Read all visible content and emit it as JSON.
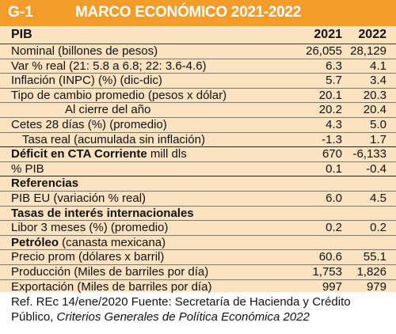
{
  "header": {
    "code": "G-1",
    "title": "MARCO ECONÓMICO 2021-2022"
  },
  "columns": {
    "label": "PIB",
    "y1": "2021",
    "y2": "2022"
  },
  "rows": [
    {
      "label": "Nominal (billones de pesos)",
      "v1": "26,055",
      "v2": "28,129"
    },
    {
      "label": "Var % real (21: 5.8 a 6.8; 22: 3.6-4.6)",
      "v1": "6.3",
      "v2": "4.1"
    },
    {
      "label": "Inflación (INPC) (%) (dic-dic)",
      "v1": "5.7",
      "v2": "3.4"
    },
    {
      "label": "Tipo de cambio promedio (pesos x dólar)",
      "v1": "20.1",
      "v2": "20.3"
    },
    {
      "label": "Al cierre del año",
      "v1": "20.2",
      "v2": "20.4"
    },
    {
      "label": "Cetes 28 días (%) (promedio)",
      "v1": "4.3",
      "v2": "5.0"
    },
    {
      "label": "Tasa real (acumulada sin inflación)",
      "v1": "-1.3",
      "v2": "1.7"
    },
    {
      "label_bold": "Déficit en CTA Corriente",
      "label_rest": " mill dls",
      "v1": "670",
      "v2": "-6,133"
    },
    {
      "label": "% PIB",
      "v1": "0.1",
      "v2": "-0.4"
    },
    {
      "label": "Referencias"
    },
    {
      "label": "PIB EU (variación % real)",
      "v1": "6.0",
      "v2": "4.5"
    },
    {
      "label": "Tasas de interés internacionales"
    },
    {
      "label": "Libor 3 meses (%) (promedio)",
      "v1": "0.2",
      "v2": "0.2"
    },
    {
      "label_bold": "Petróleo",
      "label_rest": " (canasta mexicana)"
    },
    {
      "label": "Precio prom (dólares x barril)",
      "v1": "60.6",
      "v2": "55.1"
    },
    {
      "label": "Producción (Miles de barriles por día)",
      "v1": "1,753",
      "v2": "1,826"
    },
    {
      "label": "Exportación (Miles de barriles por día)",
      "v1": "997",
      "v2": "979"
    }
  ],
  "footnote": {
    "line1": "Ref. REc 14/ene/2020   Fuente: Secretaría de Hacienda y Crédito",
    "line2_plain": "Público, ",
    "line2_italic": "Criterios Generales de Política Económica 2022"
  }
}
